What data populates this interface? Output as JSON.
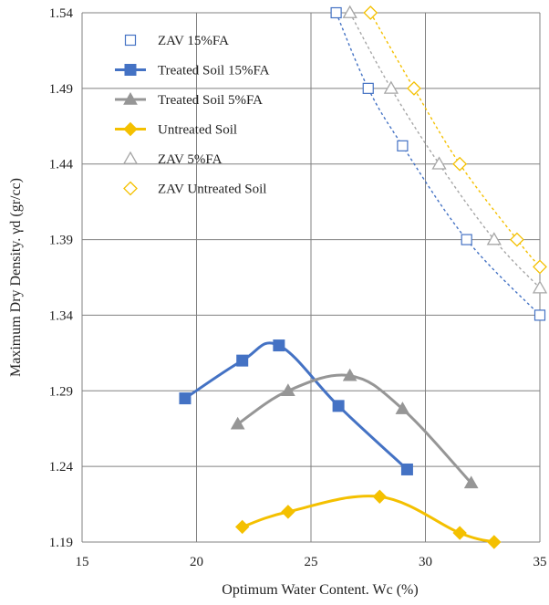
{
  "chart_data": {
    "type": "scatter",
    "xlabel": "Optimum Water Content. Wc (%)",
    "ylabel": "Maximum Dry Density. γd (gr/cc)",
    "xlim": [
      15,
      35
    ],
    "ylim": [
      1.19,
      1.54
    ],
    "x_ticks": [
      "15",
      "20",
      "25",
      "30",
      "35"
    ],
    "y_ticks": [
      "1.19",
      "1.24",
      "1.29",
      "1.34",
      "1.39",
      "1.44",
      "1.49",
      "1.54"
    ],
    "grid": true,
    "legend_position": "top-left inside",
    "series": [
      {
        "name": "ZAV 15%FA",
        "marker": "square-open",
        "line": "dotted",
        "color": "#4472c4",
        "x": [
          26.1,
          27.5,
          29.0,
          31.8,
          35.0
        ],
        "y": [
          1.54,
          1.49,
          1.452,
          1.39,
          1.34
        ]
      },
      {
        "name": "Treated Soil 15%FA",
        "marker": "square-filled",
        "line": "solid-smooth",
        "color": "#4472c4",
        "x": [
          19.5,
          22.0,
          23.6,
          26.2,
          29.2
        ],
        "y": [
          1.285,
          1.31,
          1.32,
          1.28,
          1.238
        ]
      },
      {
        "name": "Treated Soil 5%FA",
        "marker": "triangle-filled",
        "line": "solid-smooth",
        "color": "#969696",
        "x": [
          21.8,
          24.0,
          26.7,
          29.0,
          32.0
        ],
        "y": [
          1.268,
          1.29,
          1.3,
          1.278,
          1.229
        ]
      },
      {
        "name": "Untreated Soil",
        "marker": "diamond-filled",
        "line": "solid-smooth",
        "color": "#f4c000",
        "x": [
          22.0,
          24.0,
          28.0,
          31.5,
          33.0
        ],
        "y": [
          1.2,
          1.21,
          1.22,
          1.196,
          1.19
        ]
      },
      {
        "name": "ZAV 5%FA",
        "marker": "triangle-open",
        "line": "dotted",
        "color": "#a6a6a6",
        "x": [
          26.7,
          28.5,
          30.6,
          33.0,
          35.0
        ],
        "y": [
          1.54,
          1.49,
          1.44,
          1.39,
          1.358
        ]
      },
      {
        "name": "ZAV Untreated Soil",
        "marker": "diamond-open",
        "line": "dotted",
        "color": "#f4c000",
        "x": [
          27.6,
          29.5,
          31.5,
          34.0,
          35.0
        ],
        "y": [
          1.54,
          1.49,
          1.44,
          1.39,
          1.372
        ]
      }
    ]
  }
}
